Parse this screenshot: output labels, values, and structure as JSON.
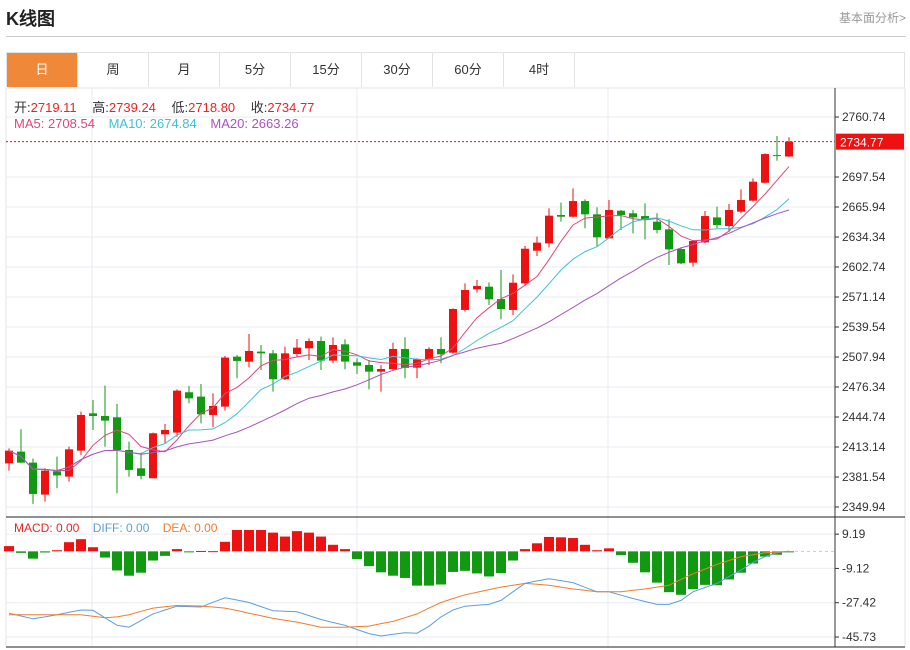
{
  "header": {
    "title": "K线图",
    "link": "基本面分析>"
  },
  "tabs": [
    {
      "label": "日",
      "active": true
    },
    {
      "label": "周"
    },
    {
      "label": "月"
    },
    {
      "label": "5分"
    },
    {
      "label": "15分"
    },
    {
      "label": "30分"
    },
    {
      "label": "60分"
    },
    {
      "label": "4时"
    }
  ],
  "info": {
    "open_label": "开:",
    "open": "2719.11",
    "high_label": "高:",
    "high": "2739.24",
    "low_label": "低:",
    "low": "2718.80",
    "close_label": "收:",
    "close": "2734.77",
    "ma5": "MA5: 2708.54",
    "ma10": "MA10: 2674.84",
    "ma20": "MA20: 2663.26",
    "macd": "MACD: 0.00",
    "diff": "DIFF: 0.00",
    "dea": "DEA: 0.00"
  },
  "colors": {
    "up": "#ee1111",
    "down": "#119911",
    "ma5": "#e0467c",
    "ma10": "#40c0d8",
    "ma20": "#a653c0",
    "diff": "#5b9ee0",
    "dea": "#ef7d2c",
    "accent": "#f0883a"
  },
  "chart_data": [
    {
      "type": "candlestick",
      "ylim": [
        2349.94,
        2760.74
      ],
      "y_ticks": [
        "2760.74",
        "2697.54",
        "2665.94",
        "2634.34",
        "2602.74",
        "2571.14",
        "2539.54",
        "2507.94",
        "2476.34",
        "2444.74",
        "2413.14",
        "2381.54",
        "2349.94"
      ],
      "last_price": "2734.77",
      "ma_periods": [
        5,
        10,
        20
      ],
      "ohlc": [
        [
          2395.9,
          2411.7,
          2388.2,
          2409.3
        ],
        [
          2408.3,
          2431.8,
          2396,
          2396.7
        ],
        [
          2396.7,
          2401,
          2353.2,
          2363.7
        ],
        [
          2363,
          2390.7,
          2355.6,
          2388.3
        ],
        [
          2387.6,
          2403,
          2369.7,
          2383.2
        ],
        [
          2382,
          2413.6,
          2376.7,
          2410.7
        ],
        [
          2409.3,
          2450.4,
          2404.8,
          2446.9
        ],
        [
          2448.6,
          2462.7,
          2431.1,
          2445.8
        ],
        [
          2445.8,
          2477.8,
          2413.5,
          2440.9
        ],
        [
          2444.4,
          2458.5,
          2364.4,
          2410
        ],
        [
          2410,
          2418.8,
          2382,
          2389
        ],
        [
          2390.7,
          2407.2,
          2379.2,
          2382.7
        ],
        [
          2380.2,
          2428.3,
          2380.2,
          2427.6
        ],
        [
          2426.5,
          2437.4,
          2417,
          2431.1
        ],
        [
          2428.3,
          2473.9,
          2424.1,
          2472.5
        ],
        [
          2470.8,
          2477.4,
          2459.2,
          2464.4
        ],
        [
          2466.2,
          2479.5,
          2438,
          2447.6
        ],
        [
          2446.9,
          2469.7,
          2433.9,
          2456.4
        ],
        [
          2455.7,
          2509,
          2451.5,
          2507.3
        ],
        [
          2508.3,
          2510,
          2485.5,
          2503.8
        ],
        [
          2503,
          2532.2,
          2497,
          2514.3
        ],
        [
          2513.6,
          2520.6,
          2494.3,
          2511.8
        ],
        [
          2511.8,
          2515.3,
          2471.5,
          2484.5
        ],
        [
          2484.5,
          2518.9,
          2483.7,
          2511.8
        ],
        [
          2511.1,
          2526.9,
          2508.3,
          2517.8
        ],
        [
          2517.1,
          2527.6,
          2504.8,
          2524.8
        ],
        [
          2524.8,
          2529.4,
          2494.3,
          2504.1
        ],
        [
          2504.1,
          2528.7,
          2501.3,
          2520.6
        ],
        [
          2521.3,
          2526.6,
          2495,
          2503.1
        ],
        [
          2502.4,
          2506.6,
          2490,
          2498.8
        ],
        [
          2499.5,
          2504.8,
          2474,
          2492.5
        ],
        [
          2492.5,
          2499.5,
          2471.5,
          2495.3
        ],
        [
          2495,
          2523,
          2494.3,
          2516.4
        ],
        [
          2516.4,
          2528.7,
          2485.5,
          2496.4
        ],
        [
          2496.7,
          2506.6,
          2485.5,
          2505.5
        ],
        [
          2505.5,
          2518.2,
          2499.5,
          2516.4
        ],
        [
          2516.4,
          2528.7,
          2501.3,
          2510.8
        ],
        [
          2512.5,
          2559.2,
          2511.8,
          2558.5
        ],
        [
          2557.5,
          2585.5,
          2555.7,
          2578.5
        ],
        [
          2579.2,
          2589,
          2575.7,
          2582.7
        ],
        [
          2582,
          2586.6,
          2562.7,
          2568.7
        ],
        [
          2569,
          2599.6,
          2547.6,
          2558.5
        ],
        [
          2557.5,
          2595,
          2552.2,
          2586.2
        ],
        [
          2585.5,
          2624.9,
          2582.7,
          2622
        ],
        [
          2619.9,
          2634.7,
          2614.3,
          2628.4
        ],
        [
          2627.7,
          2664.5,
          2623.4,
          2656.8
        ],
        [
          2657.5,
          2670.5,
          2650.5,
          2655.7
        ],
        [
          2655.7,
          2685.6,
          2655,
          2672.2
        ],
        [
          2672.2,
          2674,
          2643.5,
          2658.2
        ],
        [
          2658.2,
          2665.6,
          2624.9,
          2634
        ],
        [
          2632.9,
          2673.3,
          2632.9,
          2662.8
        ],
        [
          2662,
          2662.8,
          2641.7,
          2657.5
        ],
        [
          2659.3,
          2662.8,
          2638.2,
          2655
        ],
        [
          2656.4,
          2669.8,
          2631.9,
          2652.2
        ],
        [
          2650.5,
          2659.3,
          2638.2,
          2641.7
        ],
        [
          2642.4,
          2653,
          2604.8,
          2621.3
        ],
        [
          2621.7,
          2623.4,
          2605.9,
          2606.6
        ],
        [
          2607.3,
          2631.2,
          2603.1,
          2630.1
        ],
        [
          2628.7,
          2661.7,
          2627.7,
          2656.4
        ],
        [
          2655,
          2666.3,
          2643.5,
          2647
        ],
        [
          2645.9,
          2669.1,
          2639.9,
          2662.8
        ],
        [
          2661,
          2684.5,
          2659.3,
          2673.3
        ],
        [
          2672.6,
          2696.1,
          2671.5,
          2692.6
        ],
        [
          2691.5,
          2722.4,
          2690.8,
          2721.7
        ],
        [
          2720.6,
          2740.7,
          2714.7,
          2720.0
        ],
        [
          2719.11,
          2739.24,
          2718.8,
          2734.77
        ]
      ]
    },
    {
      "type": "bar+line",
      "ylim": [
        -45.73,
        18.34
      ],
      "y_ticks": [
        "9.19",
        "-9.12",
        "-27.42",
        "-45.73"
      ],
      "macd": [
        2.8,
        -0.8,
        -3.9,
        -0.6,
        0.6,
        4.9,
        6.5,
        2.2,
        -3.3,
        -10.2,
        -13,
        -11.4,
        -4.9,
        -2.4,
        1.2,
        -0.2,
        0.2,
        0.1,
        5.1,
        11.4,
        11.4,
        11.4,
        10,
        7.9,
        10.8,
        10,
        7.9,
        3.5,
        1.2,
        -4.1,
        -7.9,
        -11.2,
        -13,
        -14.2,
        -18.3,
        -18.3,
        -17.7,
        -11,
        -10.4,
        -11.8,
        -13.4,
        -11.6,
        -4.9,
        1.2,
        4.3,
        7.7,
        7.5,
        7.1,
        3.5,
        0.6,
        1.6,
        -2,
        -6.1,
        -11.2,
        -16.7,
        -21.8,
        -23.2,
        -20.1,
        -17.9,
        -18.1,
        -15,
        -11.4,
        -6.5,
        -2.8,
        -1.8,
        -0.3
      ],
      "diff": [
        -33,
        -34.5,
        -36,
        -35,
        -33.8,
        -32.5,
        -31.3,
        -31.5,
        -35.5,
        -39.5,
        -40.5,
        -37,
        -33.4,
        -31.3,
        -29.3,
        -29.5,
        -29.7,
        -27.2,
        -24.8,
        -26,
        -27.3,
        -29.5,
        -31.7,
        -32,
        -32.3,
        -34.3,
        -36.4,
        -38,
        -39.5,
        -41.7,
        -43.9,
        -45.2,
        -44.3,
        -43.5,
        -43.7,
        -40,
        -35,
        -31.3,
        -29.3,
        -28.8,
        -28.3,
        -26.2,
        -21.6,
        -17.1,
        -15.8,
        -14.6,
        -15.6,
        -16.7,
        -19.2,
        -21.6,
        -21.6,
        -23.4,
        -25.2,
        -26.8,
        -28.3,
        -28.3,
        -26.2,
        -21.6,
        -19.3,
        -17.1,
        -13.5,
        -10,
        -5.9,
        -2.8,
        -0.8,
        0
      ],
      "dea": [
        -33.8,
        -33.8,
        -33.8,
        -33.8,
        -33.8,
        -33.8,
        -33.8,
        -34.6,
        -35.4,
        -35,
        -33.8,
        -32,
        -30.3,
        -29.6,
        -28.9,
        -29,
        -29.2,
        -29.7,
        -30.3,
        -31.6,
        -33,
        -34.4,
        -35.8,
        -36.8,
        -37.8,
        -39.1,
        -40.5,
        -40.5,
        -40.5,
        -40.2,
        -39.9,
        -38.6,
        -37.4,
        -35.4,
        -33.4,
        -30.3,
        -27.3,
        -25.2,
        -23.2,
        -21.8,
        -20.4,
        -19.1,
        -18.1,
        -17.1,
        -17.6,
        -18.1,
        -19.1,
        -20.1,
        -20.8,
        -21.6,
        -21.6,
        -21.6,
        -20.8,
        -20.1,
        -19.1,
        -18.1,
        -15,
        -12,
        -9.5,
        -6.9,
        -4.9,
        -2.8,
        -1.8,
        -0.8,
        -0.4,
        0
      ]
    }
  ]
}
